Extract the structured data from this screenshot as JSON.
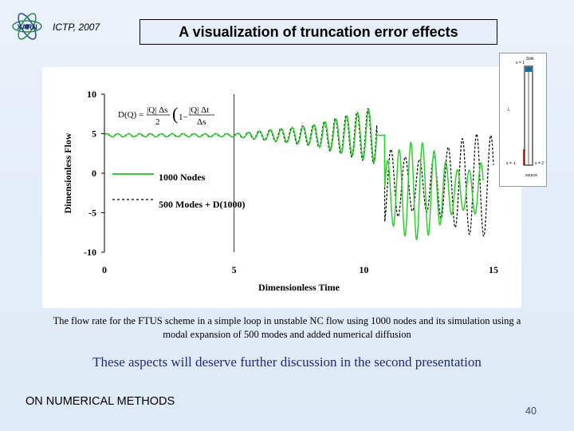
{
  "header": {
    "venue": "ICTP, 2007",
    "title": "A visualization of truncation error effects",
    "logo_icon": "atom-logo-icon",
    "logo_text": "XARN"
  },
  "chart_data": {
    "type": "line",
    "title": "",
    "xlabel": "Dimensionless Time",
    "ylabel": "Dimensionless Flow",
    "xlim": [
      0,
      15
    ],
    "ylim": [
      -10,
      10
    ],
    "xticks": [
      "0",
      "5",
      "10",
      "15"
    ],
    "yticks": [
      "10",
      "5",
      "0",
      "-5",
      "-10"
    ],
    "grid": false,
    "legend_position": "left-middle",
    "series": [
      {
        "name": "1000 Nodes",
        "style": "solid",
        "color": "#33cc33"
      },
      {
        "name": "500 Modes + D(1000)",
        "style": "dashed",
        "color": "#000000"
      }
    ],
    "annotation": {
      "label": "D(Q) =",
      "formula_parts": [
        "|Q| Δs",
        "2",
        "|Q| Δt",
        "Δs",
        "1−",
        "("
      ]
    },
    "x": [
      0,
      1,
      2,
      3,
      4,
      5,
      6,
      7,
      8,
      9,
      10,
      10.5,
      11,
      11.5,
      12,
      12.5,
      13,
      13.5,
      14,
      14.5,
      15
    ],
    "description_values": {
      "1000 Nodes": [
        4.7,
        4.9,
        4.8,
        4.7,
        4.9,
        4.9,
        4.8,
        4.7,
        5.0,
        4.6,
        4.9,
        4.8,
        2.5,
        -6.5,
        -1.0,
        -4.5,
        -7.5,
        3.0,
        -6.5,
        2.0,
        2.5
      ],
      "500 Modes + D(1000)": [
        4.8,
        4.8,
        4.8,
        4.8,
        4.8,
        4.8,
        4.8,
        4.8,
        5.0,
        4.5,
        4.9,
        5.0,
        4.0,
        -2.5,
        -7.0,
        0.5,
        -7.0,
        -3.0,
        7.0,
        -2.5,
        -7.0
      ]
    }
  },
  "schematic": {
    "labels": [
      "s = 1",
      "Sink",
      "L",
      "s = -L",
      "source",
      "s = 2"
    ]
  },
  "caption": "The flow rate for the FTUS scheme in a simple loop in unstable NC flow using 1000 nodes and its simulation using a modal expansion of 500 modes and added numerical diffusion",
  "note": "These aspects will deserve further discussion in the second presentation",
  "footer": "ON NUMERICAL METHODS",
  "page_number": "40"
}
